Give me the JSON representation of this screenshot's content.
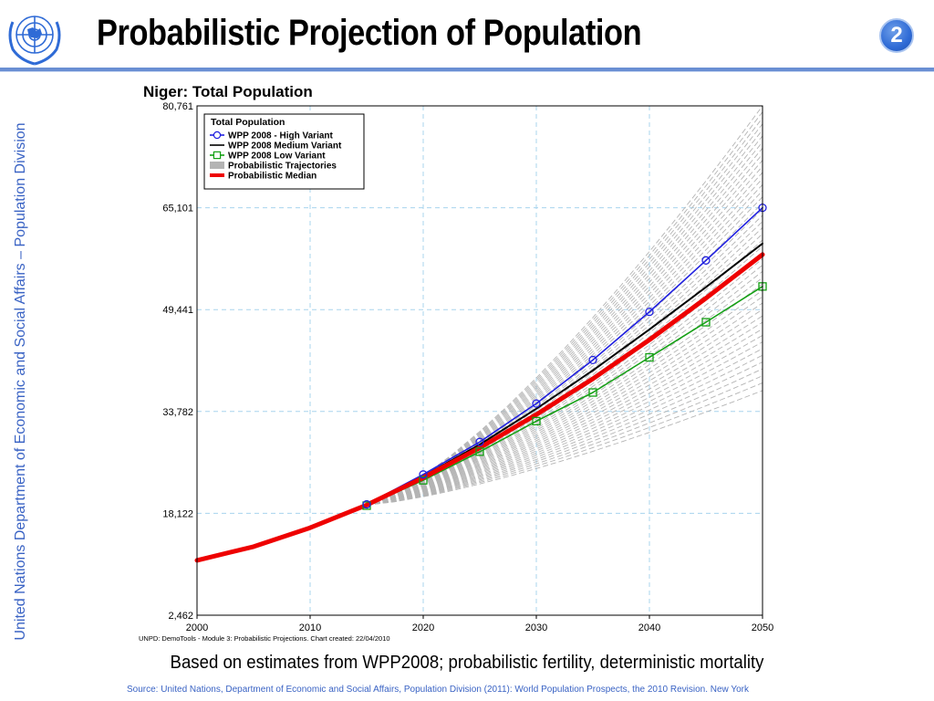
{
  "slide": {
    "title": "Probabilistic Projection of Population",
    "number": "2",
    "side_label": "United Nations Department of Economic and Social Affairs – Population Division",
    "caption": "Based on estimates from WPP2008; probabilistic fertility, deterministic mortality",
    "source": "Source: United Nations, Department of Economic and Social Affairs, Population Division (2011): World Population Prospects, the 2010 Revision. New York",
    "colors": {
      "accent": "#3a63c4",
      "rule": "#6a8fd3"
    }
  },
  "chart_data": {
    "type": "line",
    "title": "Niger: Total Population",
    "footnote": "UNPD: DemoTools - Module 3: Probabilistic Projections. Chart created: 22/04/2010",
    "xlim": [
      2000,
      2050
    ],
    "ylim": [
      2462,
      80761
    ],
    "x_ticks": [
      2000,
      2010,
      2020,
      2030,
      2040,
      2050
    ],
    "y_ticks": [
      2462,
      18122,
      33782,
      49441,
      65101,
      80761
    ],
    "y_tick_labels": [
      "2,462",
      "18,122",
      "33,782",
      "49,441",
      "65,101",
      "80,761"
    ],
    "grid": true,
    "legend_position": "top-left",
    "legend_title": "Total Population",
    "legend": [
      {
        "label": "WPP 2008 - High Variant",
        "color": "#2020e0",
        "marker": "circle"
      },
      {
        "label": "WPP 2008 Medium Variant",
        "color": "#000000",
        "marker": "none"
      },
      {
        "label": "WPP 2008 Low Variant",
        "color": "#14a014",
        "marker": "square"
      },
      {
        "label": "Probabilistic Trajectories",
        "color": "#b4b4b4",
        "marker": "band"
      },
      {
        "label": "Probabilistic Median",
        "color": "#ee0000",
        "marker": "thick-line"
      }
    ],
    "series": [
      {
        "name": "Probabilistic Median",
        "color": "#ee0000",
        "x": [
          2000,
          2005,
          2010,
          2015,
          2020,
          2025,
          2030,
          2035,
          2040,
          2045,
          2050
        ],
        "y": [
          10900,
          13000,
          15900,
          19400,
          23600,
          28200,
          33300,
          38800,
          44800,
          51200,
          57900
        ]
      },
      {
        "name": "WPP 2008 Medium Variant",
        "color": "#000000",
        "x": [
          2015,
          2020,
          2025,
          2030,
          2035,
          2040,
          2045,
          2050
        ],
        "y": [
          19400,
          23800,
          28700,
          34200,
          40100,
          46400,
          52900,
          59600
        ]
      },
      {
        "name": "WPP 2008 - High Variant",
        "color": "#2020e0",
        "x": [
          2015,
          2020,
          2025,
          2030,
          2035,
          2040,
          2045,
          2050
        ],
        "y": [
          19500,
          24100,
          29100,
          35000,
          41700,
          49100,
          57000,
          65100
        ]
      },
      {
        "name": "WPP 2008 Low Variant",
        "color": "#14a014",
        "x": [
          2015,
          2020,
          2025,
          2030,
          2035,
          2040,
          2045,
          2050
        ],
        "y": [
          19300,
          23200,
          27600,
          32300,
          36700,
          42100,
          47500,
          53000
        ]
      }
    ],
    "trajectories": {
      "name": "Probabilistic Trajectories",
      "color": "#b4b4b4",
      "start_year": 2015,
      "start_value": 19400,
      "end_min_2050": 37000,
      "end_max_2050": 80761,
      "count": 46
    }
  }
}
